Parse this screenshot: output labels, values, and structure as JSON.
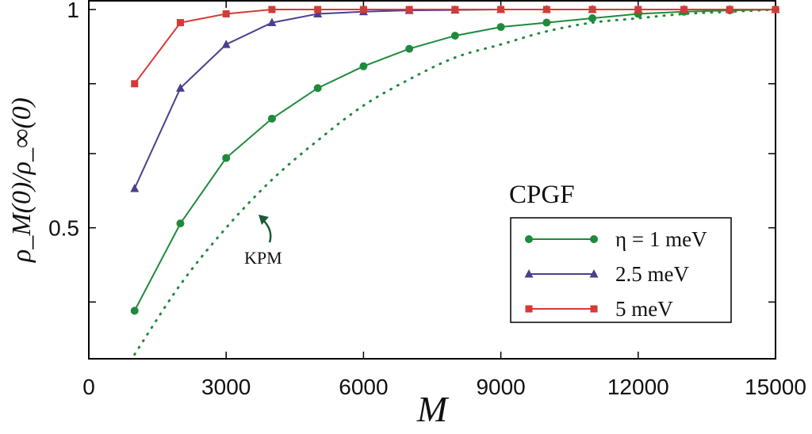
{
  "chart_data": {
    "type": "line",
    "xlabel": "M",
    "ylabel": "ρ_M(0)/ρ_∞(0)",
    "xlim": [
      0,
      15000
    ],
    "ylim": [
      0.2,
      1.02
    ],
    "x_ticks": [
      0,
      3000,
      6000,
      9000,
      12000,
      15000
    ],
    "x_tick_labels": [
      "0",
      "3000",
      "6000",
      "9000",
      "12000",
      "15000"
    ],
    "y_ticks_labeled": [
      0.5,
      1.0
    ],
    "y_tick_labels": [
      "0.5",
      "1"
    ],
    "y_ticks_minor": [
      0.33,
      0.67,
      0.83
    ],
    "grid": false,
    "legend_title": "CPGF",
    "legend_position": "right",
    "series": [
      {
        "name": "η = 1 meV",
        "color": "#1e8a3c",
        "marker": "circle",
        "x": [
          1000,
          2000,
          3000,
          4000,
          5000,
          6000,
          7000,
          8000,
          9000,
          10000,
          11000,
          12000,
          13000,
          14000,
          15000
        ],
        "y": [
          0.31,
          0.51,
          0.66,
          0.75,
          0.82,
          0.87,
          0.91,
          0.94,
          0.96,
          0.97,
          0.98,
          0.99,
          0.995,
          0.998,
          1.0
        ]
      },
      {
        "name": "2.5 meV",
        "color": "#4a3f8f",
        "marker": "triangle",
        "x": [
          1000,
          2000,
          3000,
          4000,
          5000,
          6000,
          7000,
          8000,
          9000,
          10000,
          11000,
          12000,
          13000,
          14000,
          15000
        ],
        "y": [
          0.59,
          0.82,
          0.92,
          0.97,
          0.99,
          0.995,
          0.998,
          0.999,
          1.0,
          1.0,
          1.0,
          1.0,
          1.0,
          1.0,
          1.0
        ]
      },
      {
        "name": "5 meV",
        "color": "#d63a35",
        "marker": "square",
        "x": [
          1000,
          2000,
          3000,
          4000,
          5000,
          6000,
          7000,
          8000,
          9000,
          10000,
          11000,
          12000,
          13000,
          14000,
          15000
        ],
        "y": [
          0.83,
          0.97,
          0.99,
          1.0,
          1.0,
          1.0,
          1.0,
          1.0,
          1.0,
          1.0,
          1.0,
          1.0,
          1.0,
          1.0,
          1.0
        ]
      }
    ],
    "reference_curve": {
      "label": "KPM",
      "color": "#1e8a3c",
      "style": "dotted",
      "x": [
        1000,
        2000,
        3000,
        4000,
        5000,
        6000,
        7000,
        8000,
        9000,
        10000,
        11000,
        12000,
        13000,
        14000,
        15000
      ],
      "y": [
        0.21,
        0.37,
        0.5,
        0.61,
        0.7,
        0.78,
        0.84,
        0.89,
        0.92,
        0.95,
        0.97,
        0.98,
        0.99,
        0.995,
        1.0
      ]
    }
  }
}
